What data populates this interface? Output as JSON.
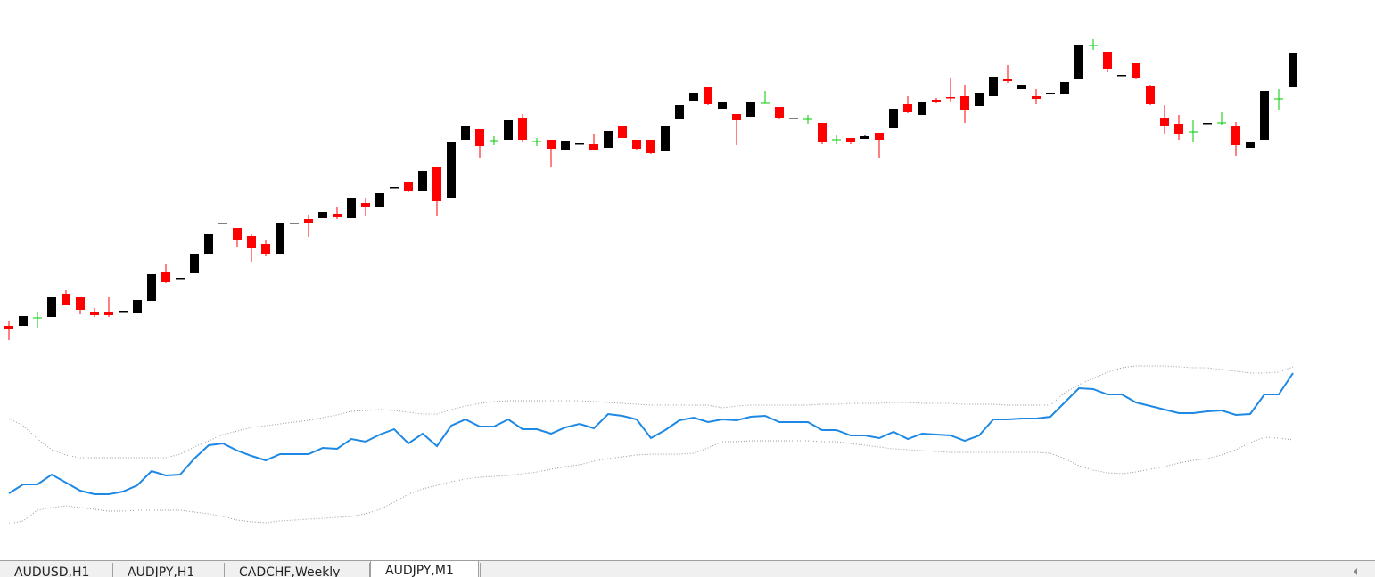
{
  "chart_data": [
    {
      "type": "candlestick",
      "ylim": [
        20,
        648
      ],
      "up_color": "#000000",
      "down_color": "#ff0000",
      "doji_color": "#00c800",
      "open": [
        282,
        282,
        291,
        292,
        318,
        315,
        298,
        298,
        298,
        297,
        310,
        342,
        335,
        341,
        363,
        397,
        392,
        383,
        374,
        363,
        397,
        402,
        403,
        408,
        403,
        420,
        415,
        437,
        444,
        434,
        460,
        426,
        491,
        503,
        490,
        491,
        516,
        489,
        491,
        480,
        486,
        486,
        482,
        506,
        491,
        491,
        478,
        514,
        535,
        550,
        526,
        520,
        517,
        532,
        528,
        515,
        514,
        510,
        491,
        493,
        492,
        499,
        504,
        531,
        519,
        536,
        539,
        540,
        529,
        540,
        559,
        548,
        540,
        542,
        542,
        559,
        597,
        590,
        563,
        577,
        551,
        516,
        509,
        500,
        509,
        510,
        507,
        482,
        491,
        537,
        550
      ],
      "high": [
        288,
        293,
        298,
        314,
        322,
        315,
        302,
        314,
        299,
        311,
        340,
        352,
        336,
        363,
        385,
        398,
        392,
        385,
        378,
        398,
        398,
        406,
        410,
        416,
        426,
        426,
        431,
        438,
        444,
        456,
        460,
        488,
        506,
        503,
        495,
        513,
        520,
        493,
        491,
        490,
        487,
        498,
        501,
        506,
        491,
        491,
        506,
        530,
        543,
        550,
        533,
        520,
        533,
        546,
        528,
        516,
        519,
        510,
        496,
        493,
        496,
        499,
        526,
        540,
        534,
        538,
        560,
        553,
        544,
        562,
        575,
        552,
        548,
        544,
        556,
        598,
        604,
        590,
        564,
        577,
        552,
        530,
        519,
        513,
        510,
        522,
        511,
        488,
        546,
        548,
        589
      ],
      "low": [
        266,
        282,
        280,
        292,
        305,
        295,
        292,
        292,
        298,
        297,
        310,
        330,
        335,
        341,
        363,
        397,
        371,
        354,
        361,
        363,
        397,
        382,
        403,
        402,
        403,
        405,
        415,
        437,
        432,
        434,
        405,
        426,
        491,
        470,
        485,
        491,
        488,
        484,
        460,
        480,
        486,
        479,
        482,
        493,
        480,
        475,
        478,
        514,
        535,
        530,
        526,
        485,
        517,
        532,
        514,
        515,
        509,
        486,
        486,
        486,
        492,
        470,
        504,
        521,
        519,
        532,
        534,
        510,
        529,
        540,
        555,
        548,
        531,
        542,
        542,
        559,
        592,
        567,
        563,
        559,
        530,
        497,
        491,
        488,
        509,
        508,
        473,
        482,
        491,
        525,
        550
      ],
      "close": [
        278,
        293,
        291,
        314,
        306,
        300,
        294,
        294,
        299,
        311,
        340,
        331,
        336,
        363,
        385,
        398,
        379,
        370,
        363,
        398,
        398,
        398,
        410,
        404,
        426,
        416,
        431,
        438,
        433,
        456,
        422,
        488,
        506,
        484,
        490,
        513,
        491,
        489,
        481,
        490,
        487,
        479,
        501,
        493,
        481,
        476,
        506,
        530,
        543,
        531,
        533,
        513,
        533,
        532,
        516,
        516,
        514,
        488,
        491,
        488,
        495,
        491,
        526,
        522,
        534,
        533,
        538,
        524,
        544,
        562,
        557,
        552,
        537,
        544,
        556,
        598,
        597,
        571,
        564,
        560,
        531,
        507,
        497,
        500,
        510,
        510,
        485,
        488,
        546,
        537,
        589
      ]
    },
    {
      "type": "line",
      "ylim": [
        20,
        648
      ],
      "series": [
        {
          "color": "#999999",
          "style": "dotted",
          "values": [
            178,
            170,
            155,
            143,
            137,
            134,
            134,
            134,
            134,
            134,
            134,
            134,
            138,
            146,
            153,
            160,
            164,
            168,
            170,
            172,
            174,
            176,
            179,
            182,
            186,
            187,
            188,
            187,
            185,
            183,
            183,
            188,
            192,
            195,
            197,
            198,
            198,
            198,
            198,
            198,
            198,
            197,
            196,
            195,
            194,
            193,
            193,
            193,
            193,
            193,
            190,
            192,
            193,
            193,
            193,
            193,
            193,
            194,
            194,
            195,
            195,
            195,
            196,
            196,
            195,
            195,
            195,
            194,
            194,
            194,
            193,
            193,
            193,
            193,
            207,
            216,
            223,
            230,
            235,
            237,
            237,
            237,
            236,
            235,
            235,
            233,
            231,
            229,
            229,
            230,
            236
          ]
        },
        {
          "color": "#999999",
          "style": "dotted",
          "values": [
            60,
            63,
            75,
            78,
            80,
            78,
            76,
            74,
            74,
            75,
            75,
            75,
            75,
            73,
            71,
            68,
            64,
            62,
            61,
            63,
            64,
            65,
            66,
            67,
            68,
            71,
            76,
            84,
            93,
            99,
            103,
            107,
            110,
            112,
            113,
            114,
            116,
            118,
            121,
            124,
            126,
            130,
            133,
            135,
            137,
            138,
            138,
            138,
            139,
            145,
            152,
            152,
            153,
            153,
            153,
            153,
            153,
            152,
            152,
            150,
            148,
            146,
            144,
            143,
            142,
            141,
            140,
            140,
            140,
            140,
            140,
            140,
            140,
            139,
            133,
            125,
            120,
            117,
            116,
            118,
            121,
            124,
            128,
            131,
            133,
            137,
            143,
            151,
            157,
            156,
            154
          ]
        },
        {
          "color": "#1e88e5",
          "style": "solid",
          "values": [
            94,
            104,
            104,
            115,
            106,
            97,
            93,
            93,
            96,
            103,
            119,
            114,
            115,
            133,
            148,
            150,
            142,
            136,
            131,
            138,
            138,
            138,
            145,
            144,
            155,
            152,
            160,
            166,
            150,
            161,
            147,
            170,
            177,
            169,
            169,
            177,
            166,
            166,
            161,
            168,
            172,
            167,
            183,
            181,
            177,
            156,
            165,
            176,
            179,
            174,
            177,
            176,
            180,
            181,
            174,
            174,
            174,
            165,
            165,
            159,
            159,
            156,
            163,
            155,
            161,
            160,
            159,
            153,
            159,
            177,
            177,
            178,
            178,
            180,
            196,
            212,
            211,
            205,
            205,
            196,
            192,
            188,
            184,
            184,
            186,
            187,
            182,
            183,
            205,
            205,
            229
          ]
        }
      ]
    }
  ],
  "tabs": [
    {
      "label": "AUDUSD,H1",
      "active": false
    },
    {
      "label": "AUDJPY,H1",
      "active": false
    },
    {
      "label": "CADCHF,Weekly",
      "active": false
    },
    {
      "label": "AUDJPY,M1",
      "active": true
    }
  ]
}
